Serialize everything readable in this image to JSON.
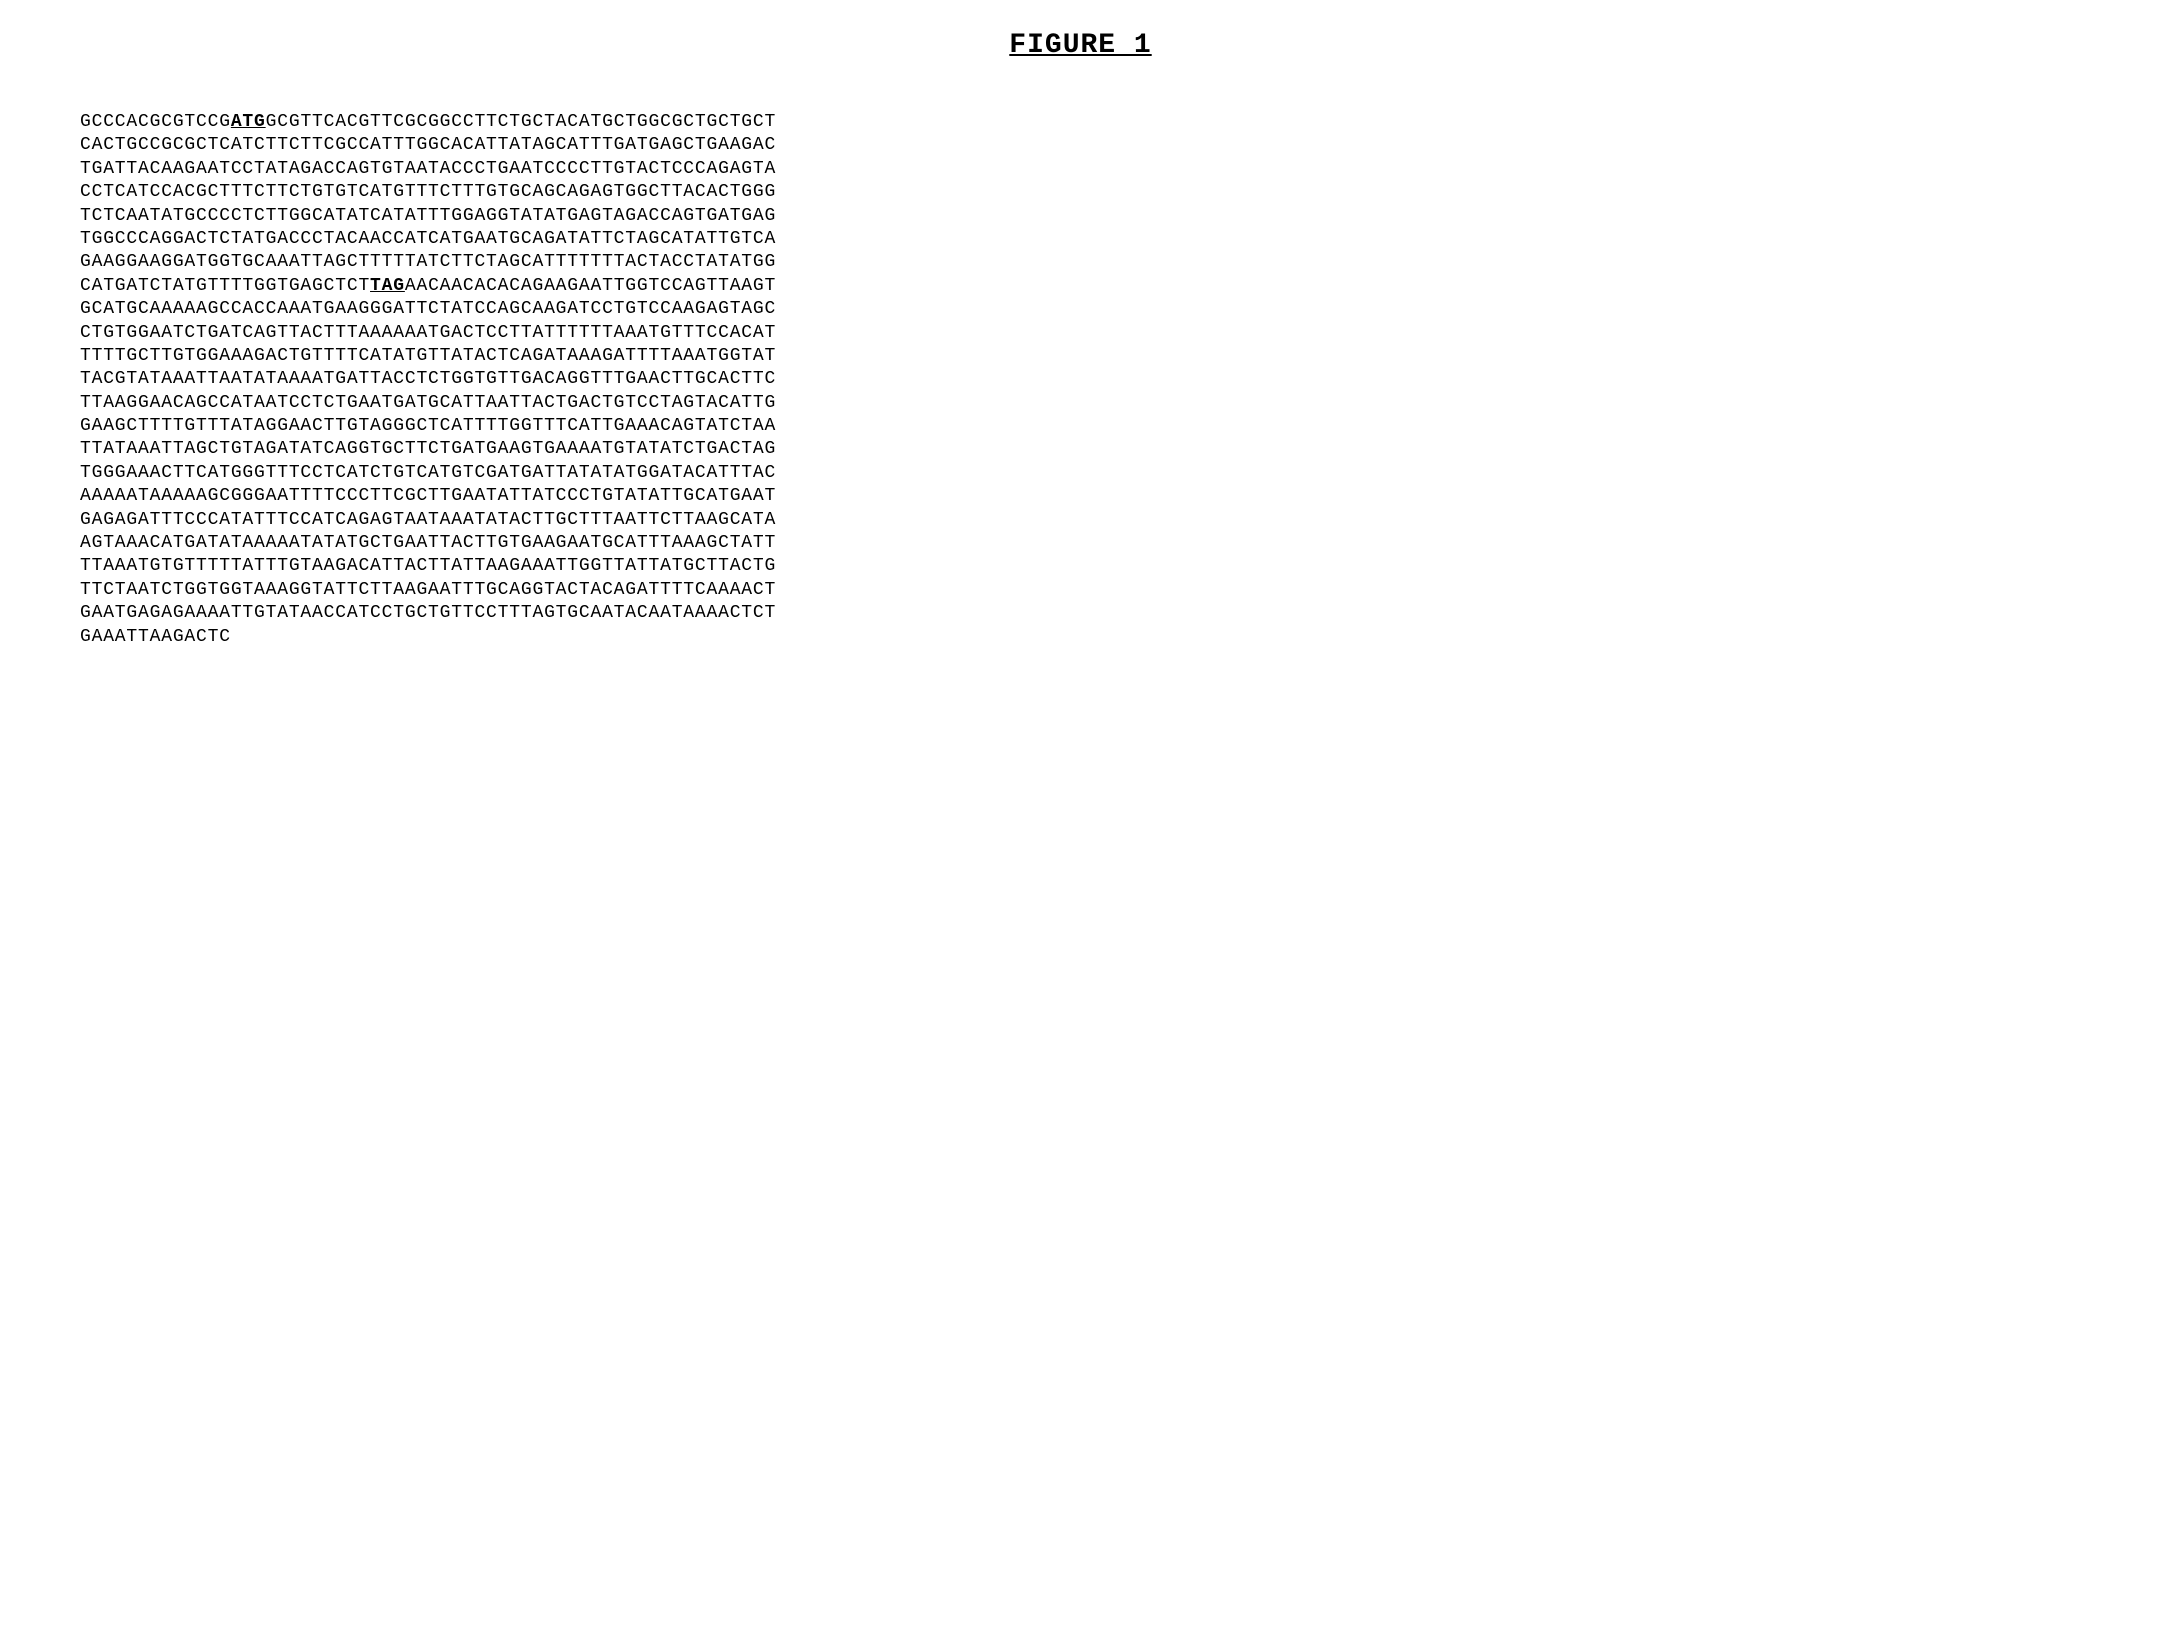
{
  "figure_title": "FIGURE 1",
  "sequence": {
    "lines": [
      {
        "pre": "GCCCACGCGTCCG",
        "highlight": "ATG",
        "post": "GCGTTCACGTTCGCGGCCTTCTGCTACATGCTGGCGCTGCTGCT"
      },
      {
        "pre": "CACTGCCGCGCTCATCTTCTTCGCCATTTGGCACATTATAGCATTTGATGAGCTGAAGAC",
        "highlight": "",
        "post": ""
      },
      {
        "pre": "TGATTACAAGAATCCTATAGACCAGTGTAATACCCTGAATCCCCTTGTACTCCCAGAGTA",
        "highlight": "",
        "post": ""
      },
      {
        "pre": "CCTCATCCACGCTTTCTTCTGTGTCATGTTTCTTTGTGCAGCAGAGTGGCTTACACTGGG",
        "highlight": "",
        "post": ""
      },
      {
        "pre": "TCTCAATATGCCCCTCTTGGCATATCATATTTGGAGGTATATGAGTAGACCAGTGATGAG",
        "highlight": "",
        "post": ""
      },
      {
        "pre": "TGGCCCAGGACTCTATGACCCTACAACCATCATGAATGCAGATATTCTAGCATATTGTCA",
        "highlight": "",
        "post": ""
      },
      {
        "pre": "GAAGGAAGGATGGTGCAAATTAGCTTTTTATCTTCTAGCATTTTTTTACTACCTATATGG",
        "highlight": "",
        "post": ""
      },
      {
        "pre": "CATGATCTATGTTTTGGTGAGCTCT",
        "highlight": "TAG",
        "post": "AACAACACACAGAAGAATTGGTCCAGTTAAGT"
      },
      {
        "pre": "GCATGCAAAAAGCCACCAAATGAAGGGATTCTATCCAGCAAGATCCTGTCCAAGAGTAGC",
        "highlight": "",
        "post": ""
      },
      {
        "pre": "CTGTGGAATCTGATCAGTTACTTTAAAAAATGACTCCTTATTTTTTAAATGTTTCCACAT",
        "highlight": "",
        "post": ""
      },
      {
        "pre": "TTTTGCTTGTGGAAAGACTGTTTTCATATGTTATACTCAGATAAAGATTTTAAATGGTAT",
        "highlight": "",
        "post": ""
      },
      {
        "pre": "TACGTATAAATTAATATAAAATGATTACCTCTGGTGTTGACAGGTTTGAACTTGCACTTC",
        "highlight": "",
        "post": ""
      },
      {
        "pre": "TTAAGGAACAGCCATAATCCTCTGAATGATGCATTAATTACTGACTGTCCTAGTACATTG",
        "highlight": "",
        "post": ""
      },
      {
        "pre": "GAAGCTTTTGTTTATAGGAACTTGTAGGGCTCATTTTGGTTTCATTGAAACAGTATCTAA",
        "highlight": "",
        "post": ""
      },
      {
        "pre": "TTATAAATTAGCTGTAGATATCAGGTGCTTCTGATGAAGTGAAAATGTATATCTGACTAG",
        "highlight": "",
        "post": ""
      },
      {
        "pre": "TGGGAAACTTCATGGGTTTCCTCATCTGTCATGTCGATGATTATATATGGATACATTTAC",
        "highlight": "",
        "post": ""
      },
      {
        "pre": "AAAAATAAAAAGCGGGAATTTTCCCTTCGCTTGAATATTATCCCTGTATATTGCATGAAT",
        "highlight": "",
        "post": ""
      },
      {
        "pre": "GAGAGATTTCCCATATTTCCATCAGAGTAATAAATATACTTGCTTTAATTCTTAAGCATA",
        "highlight": "",
        "post": ""
      },
      {
        "pre": "AGTAAACATGATATAAAAATATATGCTGAATTACTTGTGAAGAATGCATTTAAAGCTATT",
        "highlight": "",
        "post": ""
      },
      {
        "pre": "TTAAATGTGTTTTTATTTGTAAGACATTACTTATTAAGAAATTGGTTATTATGCTTACTG",
        "highlight": "",
        "post": ""
      },
      {
        "pre": "TTCTAATCTGGTGGTAAAGGTATTCTTAAGAATTTGCAGGTACTACAGATTTTCAAAACT",
        "highlight": "",
        "post": ""
      },
      {
        "pre": "GAATGAGAGAAAATTGTATAACCATCCTGCTGTTCCTTTAGTGCAATACAATAAAACTCT",
        "highlight": "",
        "post": ""
      },
      {
        "pre": "GAAATTAAGACTC",
        "highlight": "",
        "post": ""
      }
    ]
  },
  "styling": {
    "background_color": "#ffffff",
    "text_color": "#000000",
    "font_family": "Courier New",
    "title_fontsize": 28,
    "sequence_fontsize": 18,
    "line_height": 1.3,
    "letter_spacing": 0.8
  }
}
